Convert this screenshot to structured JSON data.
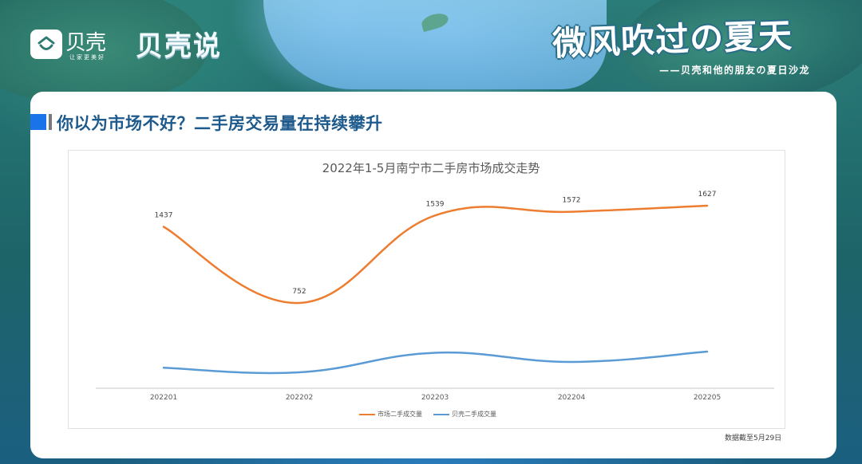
{
  "header": {
    "brand_name": "贝壳",
    "brand_slogan": "让家更美好",
    "brand_column": "贝壳说",
    "event_title": "微风吹过の夏天",
    "event_subtitle": "——贝壳和他的朋友の夏日沙龙",
    "icons": [
      "beike-house-logo-icon"
    ]
  },
  "section": {
    "title": "你以为市场不好？二手房交易量在持续攀升",
    "accent_color": "#1a73e8"
  },
  "chart": {
    "title": "2022年1-5月南宁市二手房市场成交走势",
    "x_labels": [
      "202201",
      "202202",
      "202203",
      "202204",
      "202205"
    ],
    "orange_labels": [
      "1437",
      "752",
      "1539",
      "1572",
      "1627"
    ],
    "legend": [
      {
        "label": "市场二手成交量",
        "color": "#ed7d31"
      },
      {
        "label": "贝壳二手成交量",
        "color": "#5b9bd5"
      }
    ],
    "footnote": "数据截至5月29日"
  },
  "chart_data": {
    "type": "line",
    "title": "2022年1-5月南宁市二手房市场成交走势",
    "categories": [
      "202201",
      "202202",
      "202203",
      "202204",
      "202205"
    ],
    "series": [
      {
        "name": "市场二手成交量",
        "color": "#ed7d31",
        "values": [
          1437,
          752,
          1539,
          1572,
          1627
        ],
        "data_labels": true
      },
      {
        "name": "贝壳二手成交量",
        "color": "#5b9bd5",
        "values": [
          330,
          290,
          460,
          380,
          470
        ],
        "data_labels": false,
        "note": "values estimated, not labeled"
      }
    ],
    "xlabel": "",
    "ylabel": "",
    "y_axis_visible": false,
    "grid": false,
    "smooth": true,
    "legend_position": "bottom",
    "footnote": "数据截至5月29日"
  }
}
